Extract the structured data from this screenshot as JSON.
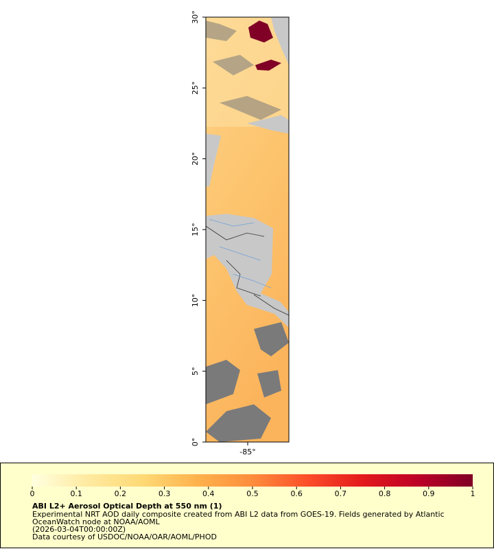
{
  "map": {
    "ylim": [
      0,
      30
    ],
    "yticks": [
      {
        "value": 0,
        "label": "0°"
      },
      {
        "value": 5,
        "label": "5°"
      },
      {
        "value": 10,
        "label": "10°"
      },
      {
        "value": 15,
        "label": "15°"
      },
      {
        "value": 20,
        "label": "20°"
      },
      {
        "value": 25,
        "label": "25°"
      },
      {
        "value": 30,
        "label": "30°"
      }
    ],
    "xlim": [
      -87.95,
      -82.1
    ],
    "xticks": [
      {
        "value": -85,
        "label": "-85°"
      }
    ]
  },
  "colorbar": {
    "range": [
      0,
      1
    ],
    "ticks": [
      0,
      0.1,
      0.2,
      0.3,
      0.4,
      0.5,
      0.6,
      0.7,
      0.8,
      0.9,
      1
    ],
    "colors": [
      "#ffffe0",
      "#ffeaa0",
      "#fed976",
      "#feb24c",
      "#fd8d3c",
      "#fc4e2a",
      "#e31a1c",
      "#bd0026",
      "#800026"
    ]
  },
  "legend_text": {
    "title": "ABI L2+ Aerosol Optical Depth at 550 nm (1)",
    "lines": [
      "Experimental NRT AOD daily composite created from ABI L2 data from GOES-19. Fields generated by Atlantic",
      "OceanWatch node at NOAA/AOML",
      "(2026-03-04T00:00:00Z)",
      "Data courtesy of USDOC/NOAA/OAR/AOML/PHOD"
    ]
  }
}
